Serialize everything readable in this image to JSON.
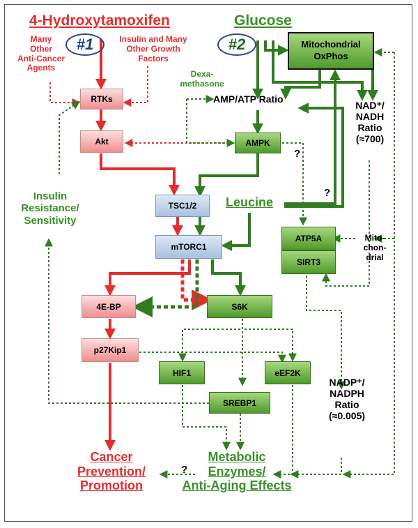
{
  "titles": {
    "hydroxytamoxifen": "4-Hydroxytamoxifen",
    "glucose": "Glucose",
    "leucine": "Leucine",
    "cancer": "Cancer\nPrevention/\nPromotion",
    "metabolic": "Metabolic\nEnzymes/\nAnti-Aging Effects"
  },
  "badges": {
    "one": "#1",
    "two": "#2"
  },
  "labels": {
    "anticancer": "Many\nOther\nAnti-Cancer\nAgents",
    "insulin_growth": "Insulin and Many\nOther Growth\nFactors",
    "dexamethasone": "Dexa-\nmethasone",
    "amp_atp": "AMP/ATP Ratio",
    "nad_ratio": "NAD⁺/\nNADH\nRatio\n(≈700)",
    "nadp_ratio": "NADP⁺/\nNADPH\nRatio\n(≈0.005)",
    "insulin_resistance": "Insulin\nResistance/\nSensitivity",
    "mitochondrial": "Mito-\nchon-\ndrial",
    "q1": "?",
    "q2": "?",
    "q3": "?"
  },
  "boxes": {
    "rtks": "RTKs",
    "akt": "Akt",
    "tsc": "TSC1/2",
    "mtorc1": "mTORC1",
    "ebp4": "4E-BP",
    "p27": "p27Kip1",
    "ampk": "AMPK",
    "s6k": "S6K",
    "hif1": "HIF1",
    "srebp1": "SREBP1",
    "eef2k": "eEF2K",
    "atp5a": "ATP5A",
    "sirt3": "SIRT3",
    "oxphos": "Mitochondrial\nOxPhos"
  },
  "colors": {
    "red": "#e52d2d",
    "green": "#3a8f2a",
    "dark_green": "#2f7d1f"
  }
}
